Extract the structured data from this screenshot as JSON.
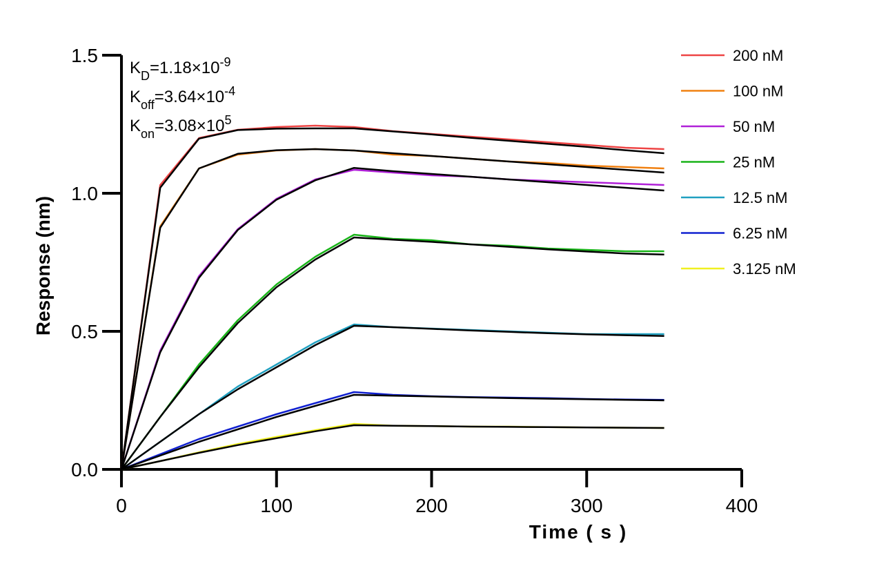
{
  "chart_data": {
    "type": "line",
    "xlabel": "Time ( s )",
    "ylabel": "Response (nm)",
    "annotations": [
      {
        "base": "K",
        "sub": "D",
        "text": "=1.18×10",
        "sup": "-9"
      },
      {
        "base": "K",
        "sub": "off",
        "text": "=3.64×10",
        "sup": "-4"
      },
      {
        "base": "K",
        "sub": "on",
        "text": "=3.08×10",
        "sup": "5"
      }
    ],
    "x": [
      0,
      25,
      50,
      75,
      100,
      125,
      150,
      175,
      200,
      225,
      250,
      275,
      300,
      325,
      350
    ],
    "xlim": [
      0,
      400
    ],
    "xticks": [
      0,
      100,
      200,
      300,
      400
    ],
    "ylim": [
      0,
      1.5
    ],
    "yticks": [
      {
        "value": 0,
        "label": "0.0"
      },
      {
        "value": 0.5,
        "label": "0.5"
      },
      {
        "value": 1,
        "label": "1.0"
      },
      {
        "value": 1.5,
        "label": "1.5"
      }
    ],
    "legend": "right",
    "series": [
      {
        "name": "200 nM",
        "color": "#ee4444",
        "values": [
          0,
          1.03,
          1.2,
          1.23,
          1.24,
          1.245,
          1.24,
          1.225,
          1.215,
          1.205,
          1.195,
          1.185,
          1.175,
          1.165,
          1.16
        ]
      },
      {
        "name": "100 nM",
        "color": "#f08010",
        "values": [
          0,
          0.88,
          1.09,
          1.14,
          1.155,
          1.16,
          1.155,
          1.14,
          1.135,
          1.125,
          1.115,
          1.11,
          1.1,
          1.095,
          1.09
        ]
      },
      {
        "name": "50 nM",
        "color": "#b020d8",
        "values": [
          0,
          0.43,
          0.7,
          0.87,
          0.98,
          1.05,
          1.085,
          1.075,
          1.065,
          1.06,
          1.05,
          1.045,
          1.04,
          1.035,
          1.03
        ]
      },
      {
        "name": "25 nM",
        "color": "#18b418",
        "values": [
          0,
          0.19,
          0.38,
          0.54,
          0.67,
          0.77,
          0.85,
          0.835,
          0.83,
          0.815,
          0.81,
          0.8,
          0.795,
          0.79,
          0.79
        ]
      },
      {
        "name": "12.5 nM",
        "color": "#20a0c0",
        "values": [
          0,
          0.1,
          0.2,
          0.3,
          0.38,
          0.46,
          0.525,
          0.515,
          0.51,
          0.505,
          0.5,
          0.495,
          0.49,
          0.49,
          0.49
        ]
      },
      {
        "name": "6.25 nM",
        "color": "#1020d0",
        "values": [
          0,
          0.055,
          0.11,
          0.155,
          0.2,
          0.24,
          0.28,
          0.27,
          0.265,
          0.262,
          0.26,
          0.258,
          0.255,
          0.253,
          0.252
        ]
      },
      {
        "name": "3.125 nM",
        "color": "#f0f020",
        "values": [
          0,
          0.03,
          0.062,
          0.092,
          0.118,
          0.142,
          0.165,
          0.158,
          0.157,
          0.155,
          0.155,
          0.153,
          0.152,
          0.151,
          0.15
        ]
      },
      {
        "color": "#000000",
        "values": [
          0,
          1.02,
          1.198,
          1.229,
          1.234,
          1.235,
          1.235,
          1.224,
          1.213,
          1.201,
          1.19,
          1.179,
          1.168,
          1.156,
          1.145
        ]
      },
      {
        "color": "#000000",
        "values": [
          0,
          0.875,
          1.09,
          1.143,
          1.156,
          1.16,
          1.155,
          1.145,
          1.135,
          1.125,
          1.115,
          1.105,
          1.095,
          1.085,
          1.075
        ]
      },
      {
        "color": "#000000",
        "values": [
          0,
          0.424,
          0.694,
          0.867,
          0.977,
          1.047,
          1.092,
          1.08,
          1.07,
          1.06,
          1.05,
          1.04,
          1.03,
          1.02,
          1.01
        ]
      },
      {
        "color": "#000000",
        "values": [
          0,
          0.19,
          0.37,
          0.53,
          0.66,
          0.76,
          0.84,
          0.832,
          0.824,
          0.815,
          0.806,
          0.797,
          0.789,
          0.782,
          0.778
        ]
      },
      {
        "color": "#000000",
        "values": [
          0,
          0.1,
          0.2,
          0.29,
          0.37,
          0.45,
          0.52,
          0.515,
          0.509,
          0.503,
          0.498,
          0.493,
          0.489,
          0.486,
          0.483
        ]
      },
      {
        "color": "#000000",
        "values": [
          0,
          0.05,
          0.1,
          0.145,
          0.19,
          0.23,
          0.27,
          0.267,
          0.264,
          0.261,
          0.258,
          0.256,
          0.254,
          0.252,
          0.25
        ]
      },
      {
        "color": "#000000",
        "values": [
          0,
          0.03,
          0.06,
          0.088,
          0.113,
          0.138,
          0.16,
          0.158,
          0.157,
          0.155,
          0.154,
          0.153,
          0.152,
          0.151,
          0.15
        ]
      }
    ]
  }
}
